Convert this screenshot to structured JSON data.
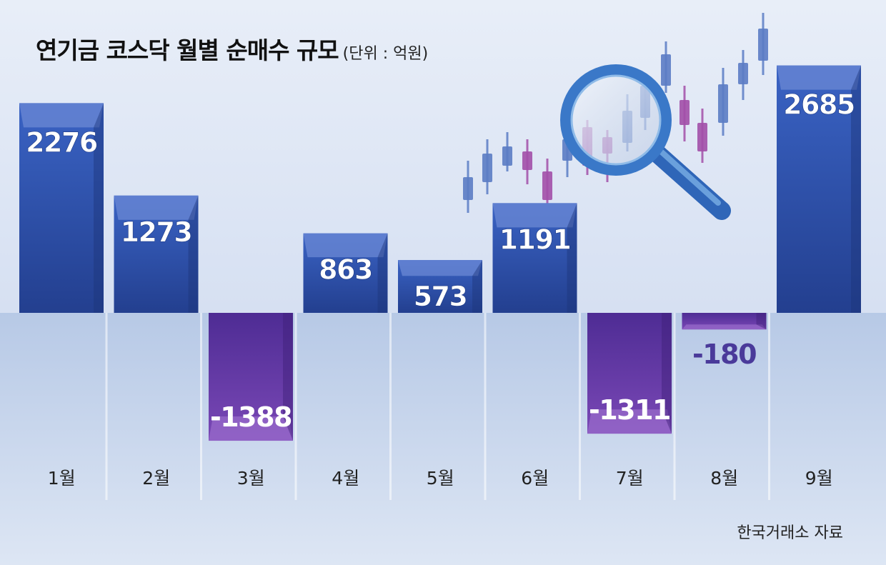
{
  "title": "연기금 코스닥 월별 순매수 규모",
  "unit": "(단위 : 억원)",
  "source": "한국거래소 자료",
  "colors": {
    "positive_bar": "#2d4fa8",
    "negative_bar": "#6a3aa8",
    "positive_label": "#ffffff",
    "negative_label_outside": "#4a3a9a",
    "axis_label": "#222222"
  },
  "chart_data": {
    "type": "bar",
    "title": "연기금 코스닥 월별 순매수 규모",
    "unit": "(단위 : 억원)",
    "categories": [
      "1월",
      "2월",
      "3월",
      "4월",
      "5월",
      "6월",
      "7월",
      "8월",
      "9월"
    ],
    "values": [
      2276,
      1273,
      -1388,
      863,
      573,
      1191,
      -1311,
      -180,
      2685
    ],
    "value_labels": [
      "2276",
      "1273",
      "-1388",
      "863",
      "573",
      "1191",
      "-1311",
      "-180",
      "2685"
    ],
    "xlabel": "",
    "ylabel": "",
    "ylim": [
      -1800,
      2900
    ],
    "grid": false,
    "legend": "none"
  }
}
